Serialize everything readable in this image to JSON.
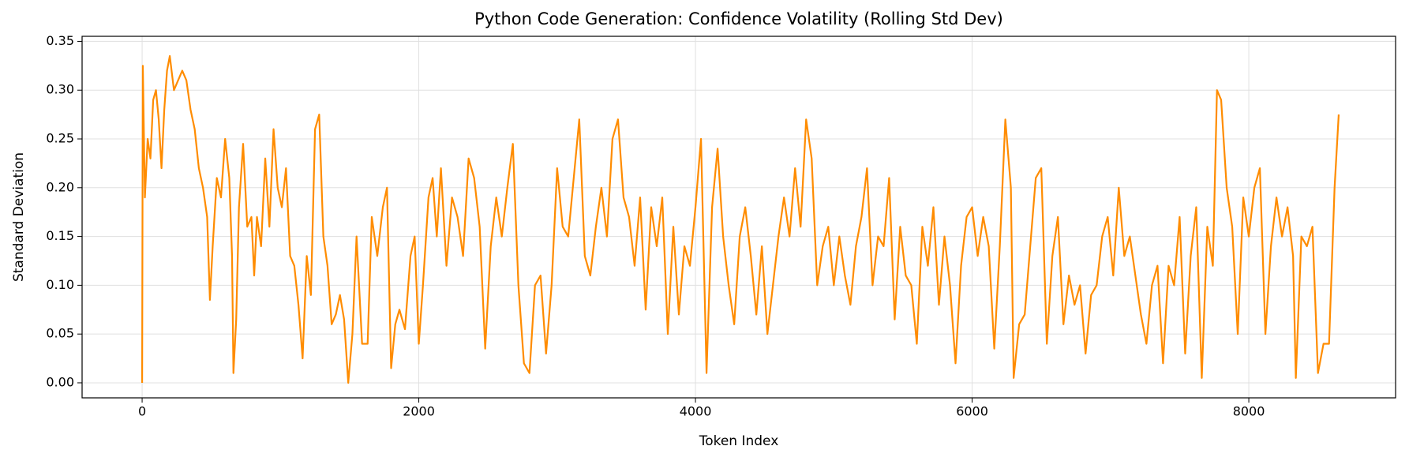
{
  "chart_data": {
    "type": "line",
    "title": "Python Code Generation: Confidence Volatility (Rolling Std Dev)",
    "x_label": "Token Index",
    "y_label": "Standard Deviation",
    "color": "#ff8c00",
    "grid": true,
    "xlim": [
      -434,
      9061
    ],
    "ylim": [
      -0.0154,
      0.3552
    ],
    "xticks": [
      0,
      2000,
      4000,
      6000,
      8000
    ],
    "yticks": [
      {
        "value": 0,
        "label": "0.00"
      },
      0.05,
      {
        "value": 0.1,
        "label": "0.10"
      },
      0.15,
      {
        "value": 0.2,
        "label": "0.20"
      },
      0.25,
      {
        "value": 0.3,
        "label": "0.30"
      },
      0.35
    ],
    "x": [
      0,
      5,
      20,
      40,
      60,
      80,
      100,
      120,
      140,
      160,
      180,
      200,
      230,
      260,
      290,
      320,
      350,
      380,
      410,
      440,
      470,
      490,
      510,
      540,
      570,
      600,
      630,
      650,
      660,
      680,
      700,
      730,
      760,
      790,
      810,
      830,
      860,
      890,
      920,
      950,
      980,
      1010,
      1040,
      1070,
      1100,
      1130,
      1160,
      1190,
      1220,
      1250,
      1280,
      1310,
      1340,
      1370,
      1400,
      1430,
      1460,
      1490,
      1520,
      1550,
      1590,
      1630,
      1660,
      1700,
      1740,
      1770,
      1800,
      1830,
      1860,
      1900,
      1940,
      1970,
      2000,
      2030,
      2070,
      2100,
      2130,
      2160,
      2200,
      2240,
      2280,
      2320,
      2360,
      2400,
      2440,
      2480,
      2520,
      2560,
      2600,
      2640,
      2680,
      2720,
      2760,
      2800,
      2840,
      2880,
      2920,
      2960,
      3000,
      3040,
      3080,
      3120,
      3160,
      3200,
      3240,
      3280,
      3320,
      3360,
      3400,
      3440,
      3480,
      3520,
      3560,
      3600,
      3640,
      3680,
      3720,
      3760,
      3800,
      3840,
      3880,
      3920,
      3960,
      4000,
      4040,
      4080,
      4120,
      4160,
      4200,
      4240,
      4280,
      4320,
      4360,
      4400,
      4440,
      4480,
      4520,
      4560,
      4600,
      4640,
      4680,
      4720,
      4760,
      4800,
      4840,
      4880,
      4920,
      4960,
      5000,
      5040,
      5080,
      5120,
      5160,
      5200,
      5240,
      5280,
      5320,
      5360,
      5400,
      5440,
      5480,
      5520,
      5560,
      5600,
      5640,
      5680,
      5720,
      5760,
      5800,
      5840,
      5880,
      5920,
      5960,
      6000,
      6040,
      6080,
      6120,
      6160,
      6200,
      6240,
      6280,
      6300,
      6340,
      6380,
      6420,
      6460,
      6500,
      6540,
      6580,
      6620,
      6660,
      6700,
      6740,
      6780,
      6820,
      6860,
      6900,
      6940,
      6980,
      7020,
      7060,
      7100,
      7140,
      7180,
      7220,
      7260,
      7300,
      7340,
      7380,
      7420,
      7460,
      7500,
      7540,
      7580,
      7620,
      7660,
      7700,
      7740,
      7770,
      7800,
      7840,
      7880,
      7920,
      7960,
      8000,
      8040,
      8080,
      8120,
      8160,
      8200,
      8240,
      8280,
      8320,
      8340,
      8380,
      8420,
      8460,
      8500,
      8540,
      8580,
      8620,
      8650
    ],
    "values": [
      0,
      0.325,
      0.19,
      0.25,
      0.23,
      0.29,
      0.3,
      0.27,
      0.22,
      0.28,
      0.32,
      0.335,
      0.3,
      0.31,
      0.32,
      0.31,
      0.28,
      0.26,
      0.22,
      0.2,
      0.17,
      0.085,
      0.14,
      0.21,
      0.19,
      0.25,
      0.21,
      0.13,
      0.01,
      0.065,
      0.18,
      0.245,
      0.16,
      0.17,
      0.11,
      0.17,
      0.14,
      0.23,
      0.16,
      0.26,
      0.2,
      0.18,
      0.22,
      0.13,
      0.12,
      0.08,
      0.025,
      0.13,
      0.09,
      0.26,
      0.275,
      0.15,
      0.12,
      0.06,
      0.07,
      0.09,
      0.065,
      0,
      0.05,
      0.15,
      0.04,
      0.04,
      0.17,
      0.13,
      0.18,
      0.2,
      0.015,
      0.06,
      0.075,
      0.055,
      0.13,
      0.15,
      0.04,
      0.1,
      0.19,
      0.21,
      0.15,
      0.22,
      0.12,
      0.19,
      0.17,
      0.13,
      0.23,
      0.21,
      0.16,
      0.035,
      0.14,
      0.19,
      0.15,
      0.2,
      0.245,
      0.1,
      0.02,
      0.01,
      0.1,
      0.11,
      0.03,
      0.1,
      0.22,
      0.16,
      0.15,
      0.21,
      0.27,
      0.13,
      0.11,
      0.16,
      0.2,
      0.15,
      0.25,
      0.27,
      0.19,
      0.17,
      0.12,
      0.19,
      0.075,
      0.18,
      0.14,
      0.19,
      0.05,
      0.16,
      0.07,
      0.14,
      0.12,
      0.18,
      0.25,
      0.01,
      0.18,
      0.24,
      0.15,
      0.1,
      0.06,
      0.15,
      0.18,
      0.13,
      0.07,
      0.14,
      0.05,
      0.1,
      0.15,
      0.19,
      0.15,
      0.22,
      0.16,
      0.27,
      0.23,
      0.1,
      0.14,
      0.16,
      0.1,
      0.15,
      0.11,
      0.08,
      0.14,
      0.17,
      0.22,
      0.1,
      0.15,
      0.14,
      0.21,
      0.065,
      0.16,
      0.11,
      0.1,
      0.04,
      0.16,
      0.12,
      0.18,
      0.08,
      0.15,
      0.1,
      0.02,
      0.12,
      0.17,
      0.18,
      0.13,
      0.17,
      0.14,
      0.035,
      0.14,
      0.27,
      0.2,
      0.005,
      0.06,
      0.07,
      0.14,
      0.21,
      0.22,
      0.04,
      0.13,
      0.17,
      0.06,
      0.11,
      0.08,
      0.1,
      0.03,
      0.09,
      0.1,
      0.15,
      0.17,
      0.11,
      0.2,
      0.13,
      0.15,
      0.11,
      0.07,
      0.04,
      0.1,
      0.12,
      0.02,
      0.12,
      0.1,
      0.17,
      0.03,
      0.13,
      0.18,
      0.005,
      0.16,
      0.12,
      0.3,
      0.29,
      0.2,
      0.16,
      0.05,
      0.19,
      0.15,
      0.2,
      0.22,
      0.05,
      0.14,
      0.19,
      0.15,
      0.18,
      0.13,
      0.005,
      0.15,
      0.14,
      0.16,
      0.01,
      0.04,
      0.04,
      0.2,
      0.275
    ]
  }
}
